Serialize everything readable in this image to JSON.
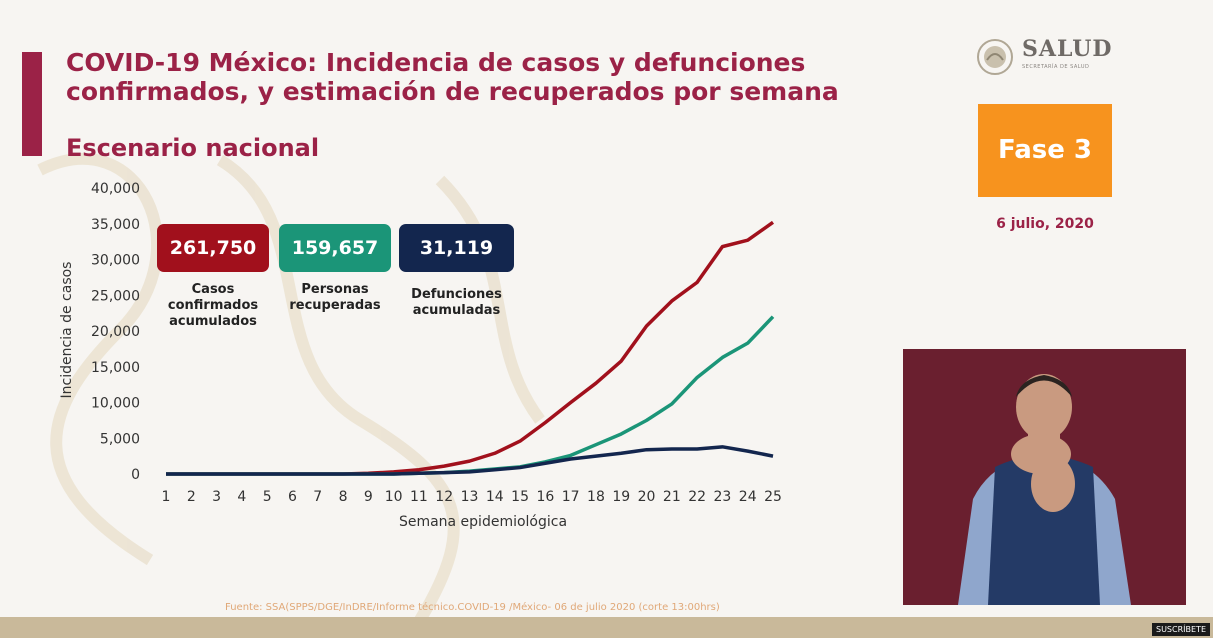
{
  "header": {
    "title": "COVID-19 México: Incidencia de casos y defunciones confirmados, y estimación de recuperados por semana",
    "subtitle": "Escenario nacional"
  },
  "logo": {
    "name": "SALUD",
    "sub": "SECRETARÍA DE SALUD"
  },
  "phase": "Fase 3",
  "date": "6 julio, 2020",
  "colors": {
    "brand": "#9b2247",
    "phase": "#f7931e",
    "confirmed": "#a1101c",
    "recovered": "#1b9578",
    "deaths": "#13264e"
  },
  "stats": [
    {
      "value": "261,750",
      "label": "Casos confirmados acumulados",
      "color": "#a1101c"
    },
    {
      "value": "159,657",
      "label": "Personas recuperadas",
      "color": "#1b9578"
    },
    {
      "value": "31,119",
      "label": "Defunciones acumuladas",
      "color": "#13264e"
    }
  ],
  "chart_data": {
    "type": "line",
    "x": [
      1,
      2,
      3,
      4,
      5,
      6,
      7,
      8,
      9,
      10,
      11,
      12,
      13,
      14,
      15,
      16,
      17,
      18,
      19,
      20,
      21,
      22,
      23,
      24,
      25
    ],
    "series": [
      {
        "name": "Casos confirmados acumulados",
        "color": "#a1101c",
        "values": [
          0,
          0,
          0,
          0,
          0,
          0,
          0,
          0,
          100,
          300,
          600,
          1100,
          1800,
          2900,
          4600,
          7200,
          10000,
          12700,
          15800,
          20700,
          24200,
          26800,
          31800,
          32700,
          35200
        ]
      },
      {
        "name": "Personas recuperadas",
        "color": "#1b9578",
        "values": [
          0,
          0,
          0,
          0,
          0,
          0,
          0,
          0,
          0,
          0,
          100,
          200,
          400,
          700,
          1000,
          1700,
          2600,
          4100,
          5600,
          7500,
          9800,
          13500,
          16300,
          18300,
          22000
        ]
      },
      {
        "name": "Defunciones acumuladas",
        "color": "#13264e",
        "values": [
          0,
          0,
          0,
          0,
          0,
          0,
          0,
          0,
          0,
          0,
          100,
          200,
          300,
          600,
          900,
          1500,
          2100,
          2500,
          2900,
          3400,
          3500,
          3500,
          3800,
          3200,
          2500
        ]
      }
    ],
    "xlabel": "Semana epidemiológica",
    "ylabel": "Incidencia de casos",
    "yticks": [
      "0",
      "5,000",
      "10,000",
      "15,000",
      "20,000",
      "25,000",
      "30,000",
      "35,000",
      "40,000"
    ],
    "ylim": [
      0,
      40000
    ],
    "grid": false
  },
  "source": "Fuente: SSA(SPPS/DGE/InDRE/Informe técnico.COVID-19 /México- 06 de julio 2020 (corte 13:00hrs)",
  "subscribe": "SUSCRÍBETE"
}
